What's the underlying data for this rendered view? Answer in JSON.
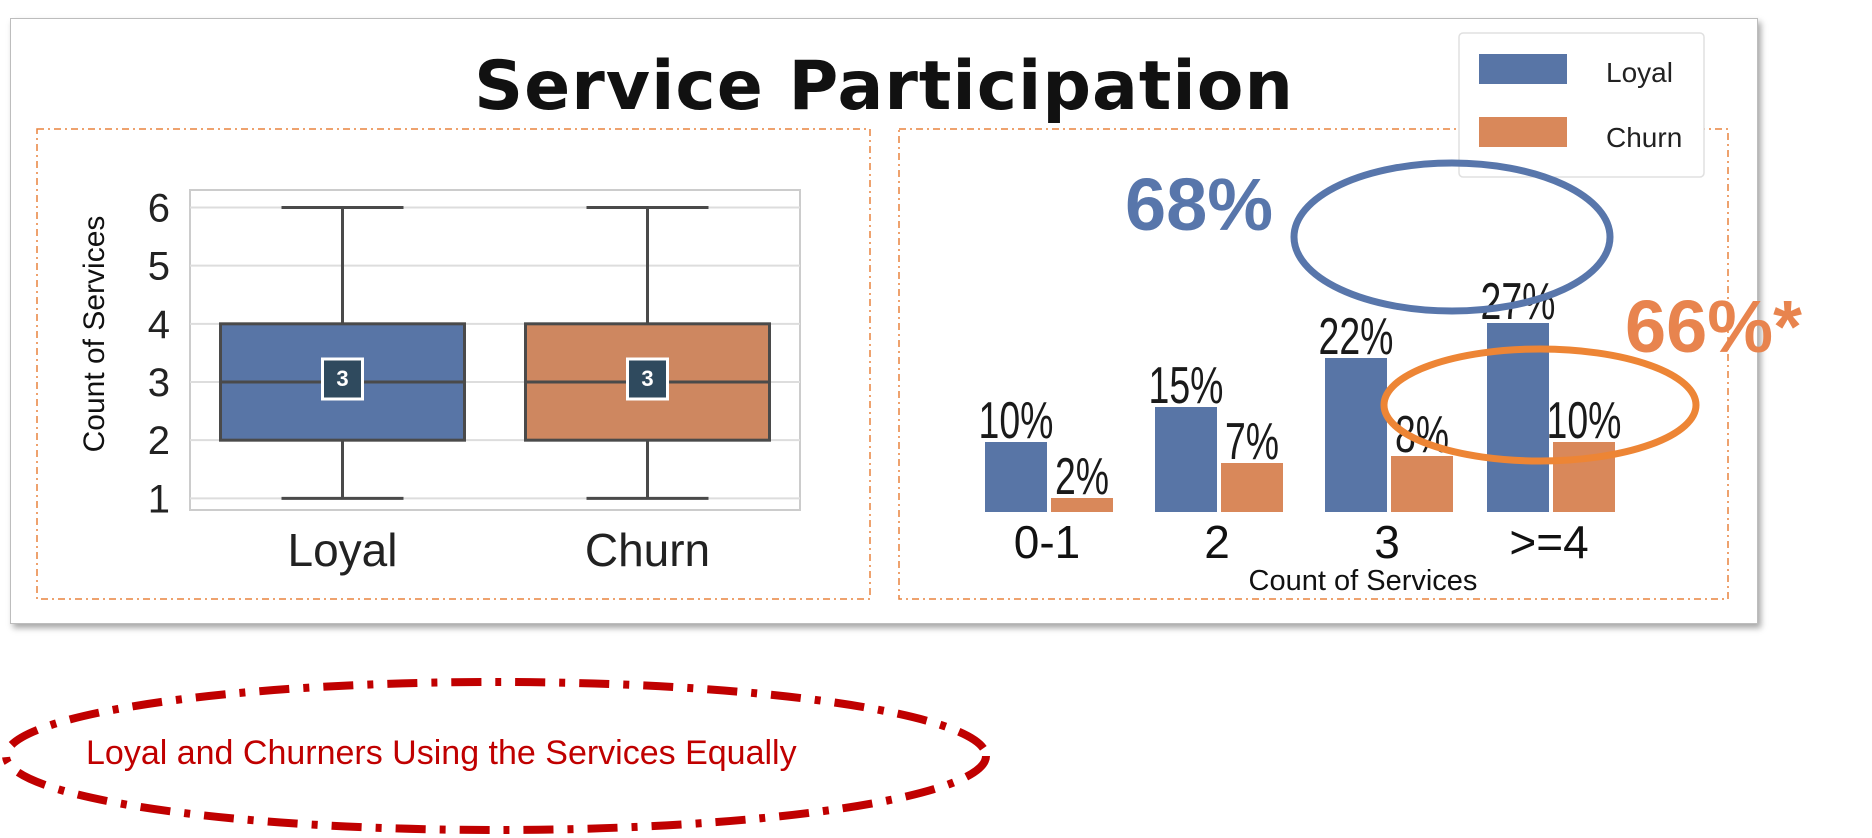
{
  "page": {
    "title": "Service Participation"
  },
  "chart_data": [
    {
      "type": "box",
      "ylabel": "Count of Services",
      "categories": [
        "Loyal",
        "Churn"
      ],
      "yticks": [
        1,
        2,
        3,
        4,
        5,
        6
      ],
      "ylim": [
        0.8,
        6.3
      ],
      "boxes": [
        {
          "name": "Loyal",
          "min": 1,
          "q1": 2,
          "median": 3,
          "q3": 4,
          "max": 6,
          "median_label": "3",
          "color": "#5875a6"
        },
        {
          "name": "Churn",
          "min": 1,
          "q1": 2,
          "median": 3,
          "q3": 4,
          "max": 6,
          "median_label": "3",
          "color": "#ce8760"
        }
      ],
      "grid": true
    },
    {
      "type": "bar",
      "xlabel": "Count of Services",
      "categories": [
        "0-1",
        "2",
        "3",
        ">=4"
      ],
      "series": [
        {
          "name": "Loyal",
          "color": "#5875a6",
          "values": [
            10,
            15,
            22,
            27
          ],
          "labels": [
            "10%",
            "15%",
            "22%",
            "27%"
          ]
        },
        {
          "name": "Churn",
          "color": "#d9885a",
          "values": [
            2,
            7,
            8,
            10
          ],
          "labels": [
            "2%",
            "7%",
            "8%",
            "10%"
          ]
        }
      ],
      "legend": "top-right",
      "annotations": [
        {
          "text": "68%",
          "color": "#5876ab"
        },
        {
          "text": "66%*",
          "color": "#e8844e"
        }
      ]
    }
  ],
  "note": {
    "text": "Loyal and Churners Using the Services Equally",
    "color": "#c00000"
  }
}
